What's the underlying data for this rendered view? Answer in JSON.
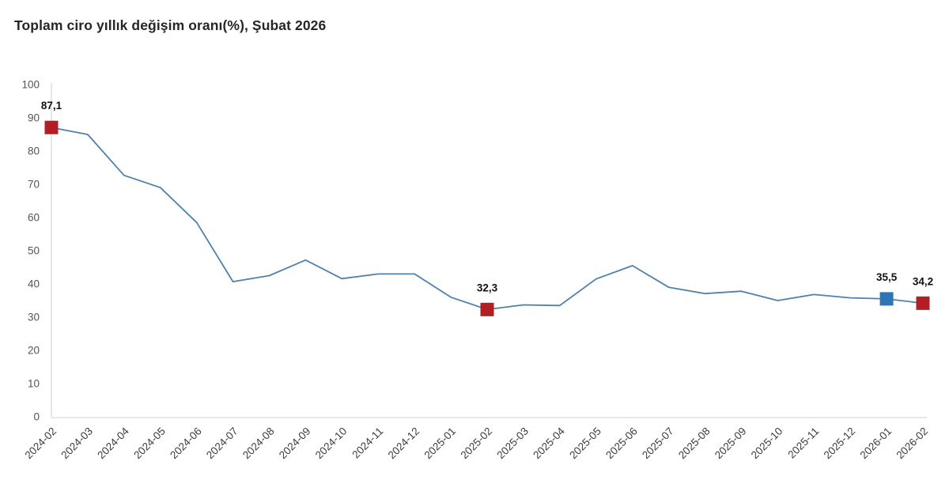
{
  "title": "Toplam ciro yıllık değişim oranı(%), Şubat 2026",
  "chart_data": {
    "type": "line",
    "title": "Toplam ciro yıllık değişim oranı(%), Şubat 2026",
    "xlabel": "",
    "ylabel": "",
    "ylim": [
      0,
      100
    ],
    "ytick_step": 10,
    "grid": false,
    "legend": "none",
    "line_color": "#4f81ac",
    "axis_color": "#d9d9d9",
    "categories": [
      "2024-02",
      "2024-03",
      "2024-04",
      "2024-05",
      "2024-06",
      "2024-07",
      "2024-08",
      "2024-09",
      "2024-10",
      "2024-11",
      "2024-12",
      "2025-01",
      "2025-02",
      "2025-03",
      "2025-04",
      "2025-05",
      "2025-06",
      "2025-07",
      "2025-08",
      "2025-09",
      "2025-10",
      "2025-11",
      "2025-12",
      "2026-01",
      "2026-02"
    ],
    "values": [
      87.1,
      85.0,
      72.7,
      69.0,
      58.5,
      40.7,
      42.5,
      47.2,
      41.6,
      43.0,
      43.0,
      36.0,
      32.3,
      33.7,
      33.5,
      41.5,
      45.5,
      39.0,
      37.1,
      37.8,
      35.0,
      36.8,
      35.8,
      35.5,
      34.2
    ],
    "highlighted_points": [
      {
        "index": 0,
        "category": "2024-02",
        "value": 87.1,
        "label": "87,1",
        "color": "#b11f24"
      },
      {
        "index": 12,
        "category": "2025-02",
        "value": 32.3,
        "label": "32,3",
        "color": "#b11f24"
      },
      {
        "index": 23,
        "category": "2026-01",
        "value": 35.5,
        "label": "35,5",
        "color": "#2e75b6"
      },
      {
        "index": 24,
        "category": "2026-02",
        "value": 34.2,
        "label": "34,2",
        "color": "#b11f24"
      }
    ]
  }
}
